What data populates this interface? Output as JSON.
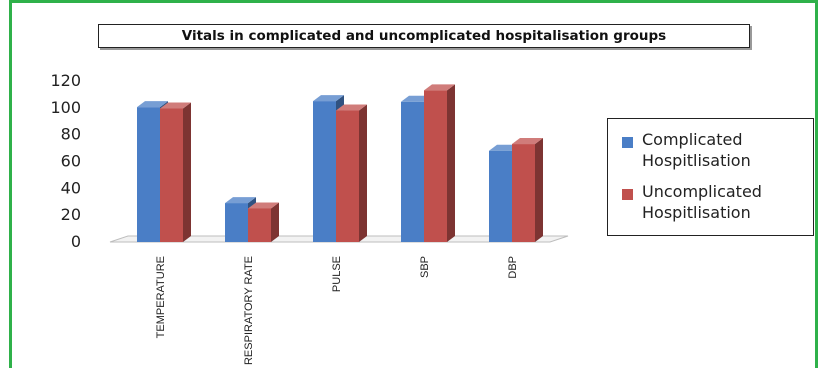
{
  "chart_data": {
    "type": "bar",
    "title": "Vitals in complicated and uncomplicated hospitalisation groups",
    "categories": [
      "TEMPERATURE",
      "RESPIRATORY RATE",
      "PULSE",
      "SBP",
      "DBP"
    ],
    "series": [
      {
        "name": "Complicated Hospitlisation",
        "color": "#4a7ec6",
        "values": [
          100.5,
          29,
          105,
          104.5,
          68
        ]
      },
      {
        "name": "Uncomplicated Hospitlisation",
        "color": "#c0504d",
        "values": [
          99.5,
          25,
          98,
          113,
          73
        ]
      }
    ],
    "ylim": [
      0,
      120
    ],
    "yticks": [
      "0",
      "20",
      "40",
      "60",
      "80",
      "100",
      "120"
    ],
    "grid": false,
    "legend": "right"
  }
}
